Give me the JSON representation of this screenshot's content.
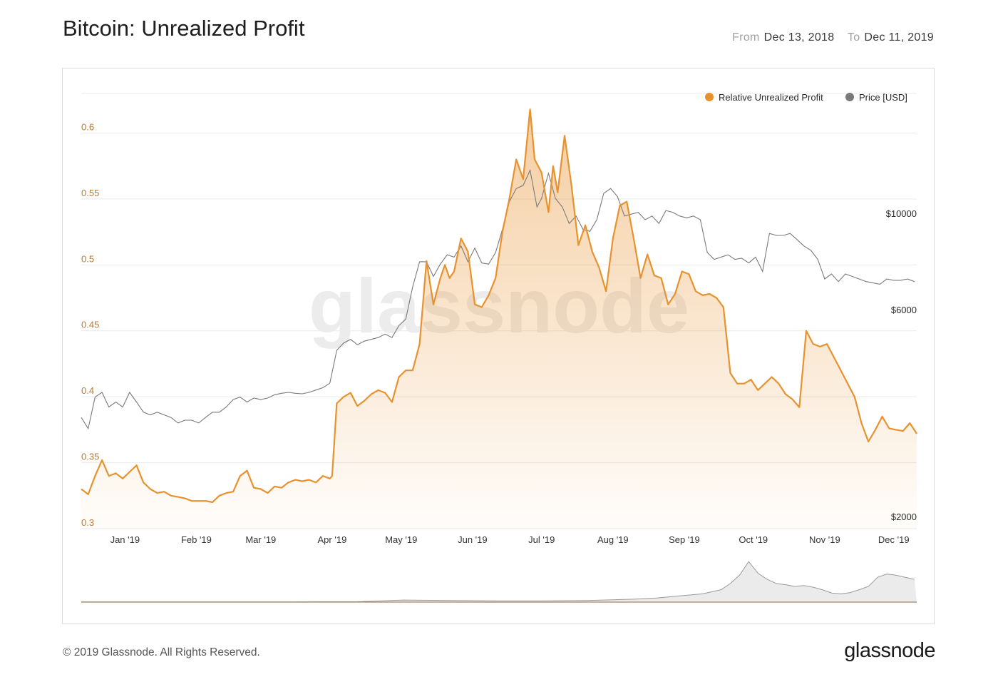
{
  "header": {
    "title": "Bitcoin: Unrealized Profit",
    "from_label": "From",
    "from_value": "Dec 13, 2018",
    "to_label": "To",
    "to_value": "Dec 11, 2019"
  },
  "footer": {
    "copyright": "© 2019 Glassnode. All Rights Reserved.",
    "brand": "glassnode"
  },
  "colors": {
    "profit": "#e8922f",
    "price": "#7a7a7a",
    "grid": "#e9e9e9"
  },
  "chart_data": {
    "type": "area",
    "title": "Bitcoin: Unrealized Profit",
    "watermark": "glassnode",
    "legend": [
      "Relative Unrealized Profit",
      "Price [USD]"
    ],
    "legend_position": "top-right",
    "x_start": "2018-12-13",
    "x_end": "2019-12-11",
    "x_tick_labels": [
      "Jan '19",
      "Feb '19",
      "Mar '19",
      "Apr '19",
      "May '19",
      "Jun '19",
      "Jul '19",
      "Aug '19",
      "Sep '19",
      "Oct '19",
      "Nov '19",
      "Dec '19"
    ],
    "x_tick_days": [
      19,
      50,
      78,
      109,
      139,
      170,
      200,
      231,
      262,
      292,
      323,
      353
    ],
    "y_left": {
      "label": "",
      "ylim": [
        0.3,
        0.63
      ],
      "ticks": [
        "0.3",
        "0.35",
        "0.4",
        "0.45",
        "0.5",
        "0.55",
        "0.6"
      ]
    },
    "y_right": {
      "label": "Price [USD]",
      "scale": "log",
      "ticks": [
        "$2000",
        "$6000",
        "$10000"
      ],
      "tick_values": [
        2000,
        6000,
        10000
      ]
    },
    "series": [
      {
        "name": "Relative Unrealized Profit",
        "days": [
          0,
          3,
          6,
          9,
          12,
          15,
          18,
          21,
          24,
          27,
          30,
          33,
          36,
          39,
          42,
          45,
          48,
          51,
          54,
          57,
          60,
          63,
          66,
          69,
          72,
          75,
          78,
          81,
          84,
          87,
          90,
          93,
          96,
          99,
          102,
          105,
          108,
          109,
          111,
          114,
          117,
          120,
          123,
          126,
          129,
          132,
          135,
          138,
          141,
          144,
          147,
          150,
          153,
          156,
          158,
          160,
          162,
          165,
          168,
          171,
          174,
          177,
          180,
          183,
          186,
          189,
          192,
          195,
          197,
          200,
          203,
          205,
          207,
          210,
          213,
          216,
          219,
          222,
          225,
          228,
          231,
          234,
          237,
          240,
          243,
          246,
          249,
          252,
          255,
          258,
          261,
          264,
          267,
          270,
          273,
          276,
          279,
          282,
          285,
          288,
          291,
          294,
          297,
          300,
          303,
          306,
          309,
          312,
          315,
          318,
          321,
          324,
          327,
          330,
          333,
          336,
          339,
          342,
          345,
          348,
          351,
          354,
          357,
          360,
          363
        ],
        "values": [
          0.33,
          0.326,
          0.34,
          0.352,
          0.34,
          0.342,
          0.338,
          0.343,
          0.348,
          0.335,
          0.33,
          0.327,
          0.328,
          0.325,
          0.324,
          0.323,
          0.321,
          0.321,
          0.321,
          0.32,
          0.325,
          0.327,
          0.328,
          0.34,
          0.344,
          0.331,
          0.33,
          0.327,
          0.332,
          0.331,
          0.335,
          0.337,
          0.336,
          0.337,
          0.335,
          0.34,
          0.338,
          0.34,
          0.395,
          0.4,
          0.403,
          0.393,
          0.397,
          0.402,
          0.405,
          0.403,
          0.396,
          0.415,
          0.42,
          0.42,
          0.44,
          0.503,
          0.47,
          0.49,
          0.5,
          0.49,
          0.495,
          0.52,
          0.51,
          0.47,
          0.468,
          0.477,
          0.49,
          0.525,
          0.55,
          0.58,
          0.565,
          0.618,
          0.58,
          0.57,
          0.54,
          0.575,
          0.555,
          0.598,
          0.56,
          0.515,
          0.53,
          0.51,
          0.498,
          0.48,
          0.52,
          0.545,
          0.548,
          0.52,
          0.49,
          0.508,
          0.492,
          0.49,
          0.47,
          0.478,
          0.495,
          0.493,
          0.48,
          0.477,
          0.478,
          0.475,
          0.468,
          0.418,
          0.41,
          0.41,
          0.413,
          0.405,
          0.41,
          0.415,
          0.41,
          0.402,
          0.398,
          0.392,
          0.45,
          0.44,
          0.438,
          0.44,
          0.43,
          0.42,
          0.41,
          0.4,
          0.38,
          0.366,
          0.375,
          0.385,
          0.376,
          0.375,
          0.374,
          0.38,
          0.372
        ]
      },
      {
        "name": "Price [USD]",
        "days": [
          0,
          3,
          6,
          9,
          12,
          15,
          18,
          21,
          24,
          27,
          30,
          33,
          36,
          39,
          42,
          45,
          48,
          51,
          54,
          57,
          60,
          63,
          66,
          69,
          72,
          75,
          78,
          81,
          84,
          87,
          90,
          93,
          96,
          99,
          102,
          105,
          108,
          111,
          114,
          117,
          120,
          123,
          126,
          129,
          132,
          135,
          138,
          141,
          144,
          147,
          150,
          153,
          156,
          159,
          162,
          165,
          168,
          171,
          174,
          177,
          180,
          183,
          186,
          189,
          192,
          195,
          198,
          200,
          203,
          206,
          209,
          212,
          215,
          218,
          221,
          224,
          227,
          230,
          233,
          236,
          239,
          242,
          245,
          248,
          251,
          254,
          257,
          260,
          263,
          266,
          269,
          272,
          275,
          278,
          281,
          284,
          287,
          290,
          293,
          296,
          299,
          302,
          305,
          308,
          311,
          314,
          317,
          320,
          323,
          326,
          329,
          332,
          335,
          338,
          341,
          344,
          347,
          350,
          353,
          356,
          359,
          362
        ],
        "values": [
          3500,
          3300,
          3900,
          4000,
          3700,
          3800,
          3700,
          4000,
          3800,
          3600,
          3550,
          3600,
          3550,
          3500,
          3400,
          3450,
          3450,
          3400,
          3500,
          3600,
          3600,
          3700,
          3850,
          3900,
          3800,
          3880,
          3850,
          3880,
          3950,
          3980,
          4000,
          3980,
          3970,
          4000,
          4050,
          4100,
          4200,
          5000,
          5200,
          5300,
          5150,
          5250,
          5300,
          5350,
          5450,
          5350,
          5700,
          5900,
          7000,
          8000,
          8000,
          7400,
          7900,
          8300,
          8200,
          8700,
          8000,
          8600,
          7950,
          7900,
          8400,
          9500,
          11000,
          11800,
          12000,
          13000,
          10700,
          11200,
          12800,
          11200,
          10700,
          9800,
          10200,
          9500,
          9400,
          10000,
          11500,
          11800,
          11300,
          10200,
          10300,
          10400,
          10000,
          10200,
          9800,
          10500,
          10400,
          10200,
          10100,
          10200,
          10000,
          8400,
          8100,
          8200,
          8300,
          8100,
          8150,
          7950,
          8200,
          7600,
          9300,
          9200,
          9200,
          9300,
          9000,
          8700,
          8500,
          8100,
          7300,
          7500,
          7200,
          7500,
          7400,
          7300,
          7200,
          7150,
          7100,
          7300,
          7250,
          7250,
          7300,
          7200
        ]
      }
    ],
    "navigator": {
      "days": [
        0,
        30,
        60,
        90,
        120,
        140,
        160,
        180,
        200,
        220,
        240,
        250,
        260,
        270,
        278,
        282,
        286,
        290,
        294,
        298,
        302,
        306,
        310,
        314,
        318,
        322,
        326,
        330,
        334,
        338,
        342,
        346,
        350,
        354,
        358,
        362
      ],
      "values": [
        0.005,
        0.005,
        0.005,
        0.005,
        0.008,
        0.05,
        0.04,
        0.03,
        0.03,
        0.04,
        0.07,
        0.1,
        0.15,
        0.2,
        0.3,
        0.45,
        0.65,
        0.98,
        0.7,
        0.55,
        0.45,
        0.42,
        0.38,
        0.4,
        0.36,
        0.3,
        0.22,
        0.2,
        0.23,
        0.3,
        0.38,
        0.6,
        0.68,
        0.65,
        0.6,
        0.55
      ]
    }
  }
}
